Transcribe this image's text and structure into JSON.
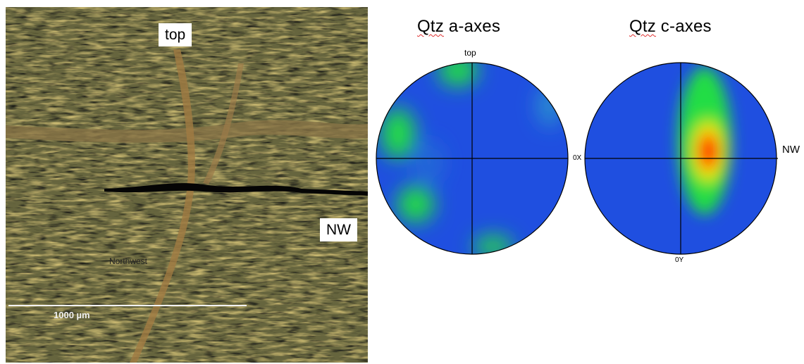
{
  "micrograph": {
    "top_label": "top",
    "nw_label": "NW",
    "overlay_text": "Northwest",
    "scale_bar_label": "1000 µm",
    "colors": {
      "base": "#6b6a3c",
      "grain_light": "#d9c57a",
      "grain_dark": "#2a2a22",
      "vein": "#8a6a3a"
    }
  },
  "pole_figures": [
    {
      "title_prefix": "Qtz",
      "title_suffix": " a-axes",
      "top_label": "top",
      "edge_label": "0X"
    },
    {
      "title_prefix": "Qtz",
      "title_suffix": " c-axes",
      "side_label": "NW",
      "bottom_label": "0Y"
    }
  ],
  "colors": {
    "background_blue": "#1f4fe0",
    "green": "#22dd44",
    "yellow": "#ffee00",
    "red": "#ff1a00",
    "outline": "#000000"
  }
}
